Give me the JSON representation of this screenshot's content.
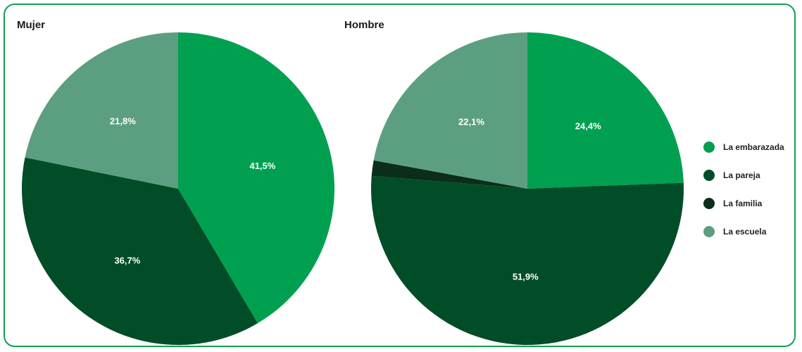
{
  "colors": {
    "frame": "#11a04e",
    "la_embarazada": "#00a050",
    "la_pareja": "#004d28",
    "la_familia": "#0b2e1a",
    "la_escuela": "#5c9f80"
  },
  "legend": [
    {
      "label": "La embarazada",
      "color": "#00a050"
    },
    {
      "label": "La pareja",
      "color": "#004d28"
    },
    {
      "label": "La familia",
      "color": "#0b2e1a"
    },
    {
      "label": "La escuela",
      "color": "#5c9f80"
    }
  ],
  "chart_data": [
    {
      "type": "pie",
      "title": "Mujer",
      "categories": [
        "La embarazada",
        "La pareja",
        "La familia",
        "La escuela"
      ],
      "values": [
        41.5,
        36.7,
        0,
        21.8
      ],
      "labels": [
        "41,5%",
        "36,7%",
        "",
        "21,8%"
      ]
    },
    {
      "type": "pie",
      "title": "Hombre",
      "categories": [
        "La embarazada",
        "La pareja",
        "La familia",
        "La escuela"
      ],
      "values": [
        24.4,
        51.9,
        1.6,
        22.1
      ],
      "labels": [
        "24,4%",
        "51,9%",
        "",
        "22,1%"
      ]
    }
  ]
}
